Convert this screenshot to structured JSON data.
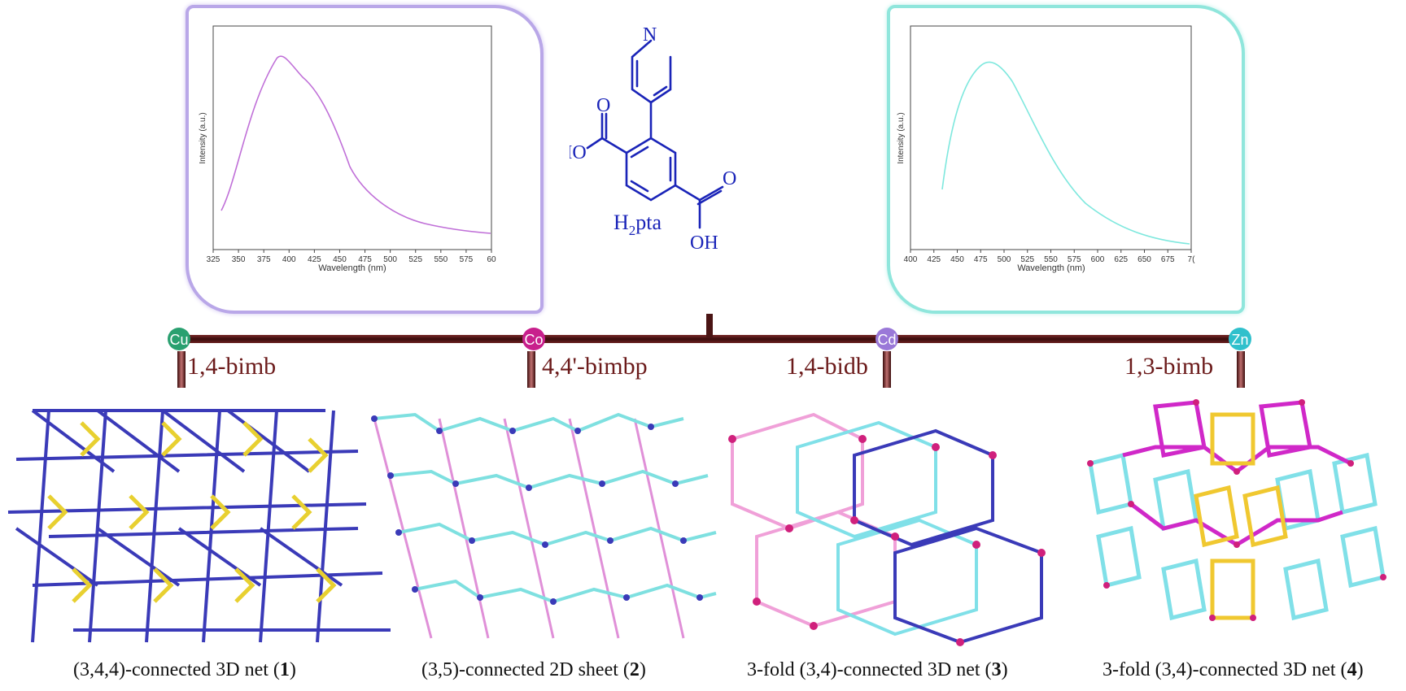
{
  "spectra": [
    {
      "id": "left",
      "ylabel": "Intensity (a.u.)",
      "xlabel": "Wavelength (nm)",
      "xticks": [
        "325",
        "350",
        "375",
        "400",
        "425",
        "450",
        "475",
        "500",
        "525",
        "550",
        "575",
        "60"
      ],
      "color": "#c070d8",
      "border_color": "#b9a7e8"
    },
    {
      "id": "right",
      "ylabel": "Intensity (a.u.)",
      "xlabel": "Wavelength (nm)",
      "xticks": [
        "400",
        "425",
        "450",
        "475",
        "500",
        "525",
        "550",
        "575",
        "600",
        "625",
        "650",
        "675",
        "7("
      ],
      "color": "#7fe8de",
      "border_color": "#8fe6dc"
    }
  ],
  "molecule": {
    "n_label": "N",
    "o_label_top": "O",
    "ho_label": "HO",
    "o_label_right": "O",
    "oh_label": "OH",
    "name_main": "H",
    "name_sub": "2",
    "name_rest": "pta",
    "color": "#1a24b8"
  },
  "timeline": {
    "bar_color": "#4a1414",
    "metals": [
      {
        "symbol": "Cu",
        "ligand": "1,4-bimb",
        "color": "#2aa070"
      },
      {
        "symbol": "Co",
        "ligand": "4,4'-bimbp",
        "color": "#c8208c"
      },
      {
        "symbol": "Cd",
        "ligand": "1,4-bidb",
        "color": "#9a78d8"
      },
      {
        "symbol": "Zn",
        "ligand": "1,3-bimb",
        "color": "#30c0cc"
      }
    ]
  },
  "structures": [
    {
      "caption_pre": "(3,4,4)-connected 3D net (",
      "caption_num": "1",
      "caption_post": ")"
    },
    {
      "caption_pre": "(3,5)-connected 2D sheet (",
      "caption_num": "2",
      "caption_post": ")"
    },
    {
      "caption_pre": "3-fold (3,4)-connected 3D net (",
      "caption_num": "3",
      "caption_post": ")"
    },
    {
      "caption_pre": "3-fold (3,4)-connected 3D net (",
      "caption_num": "4",
      "caption_post": ")"
    }
  ]
}
